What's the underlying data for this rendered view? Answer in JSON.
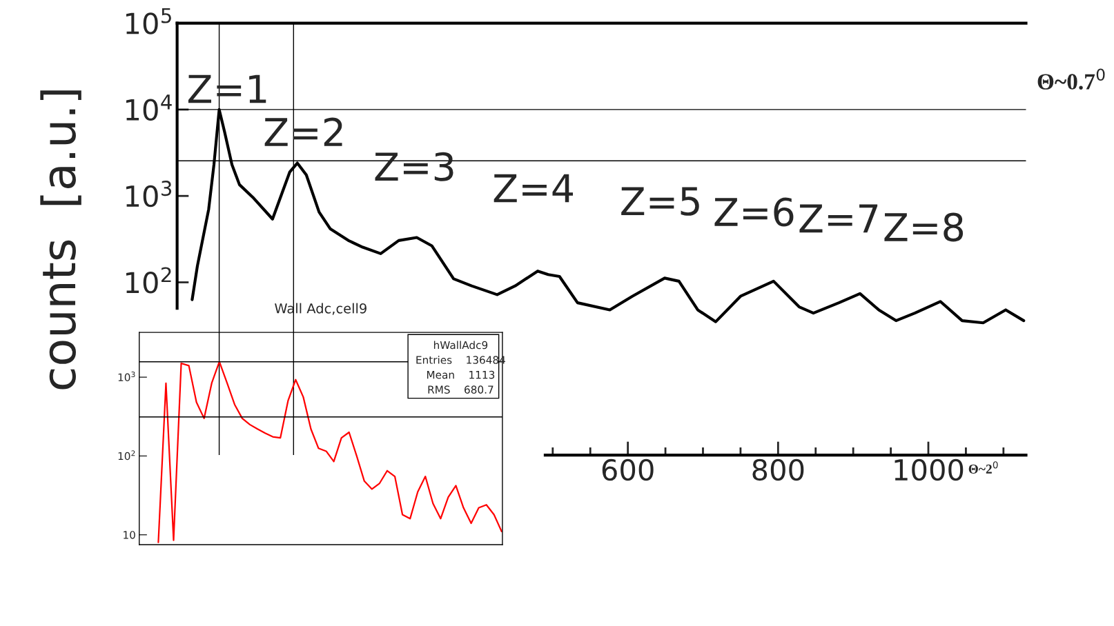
{
  "chart_data": [
    {
      "type": "line",
      "ylabel": "counts  [a.u.]",
      "log": "y",
      "xlim": [
        0,
        1130
      ],
      "ylim": [
        1,
        100000
      ],
      "xticks": [
        {
          "value": 500,
          "label": null
        },
        {
          "value": 550,
          "label": null
        },
        600,
        {
          "value": 650,
          "label": null
        },
        {
          "value": 700,
          "label": null
        },
        {
          "value": 750,
          "label": null
        },
        800,
        {
          "value": 850,
          "label": null
        },
        {
          "value": 900,
          "label": null
        },
        {
          "value": 950,
          "label": null
        },
        1000,
        {
          "value": 1050,
          "label": null
        },
        {
          "value": 1100,
          "label": null
        }
      ],
      "yticks": [
        {
          "value": 100,
          "label": "10$^{2}$"
        },
        {
          "value": 1000,
          "label": "10$^{3}$"
        },
        {
          "value": 10000,
          "label": "10$^{4}$"
        },
        {
          "value": 100000,
          "label": "10$^{5}$"
        }
      ],
      "series": [
        {
          "color": "#000000",
          "x": [
            20,
            27,
            42,
            49,
            56,
            63,
            73,
            83,
            102,
            127,
            140,
            150,
            160,
            172,
            189,
            204,
            228,
            247,
            271,
            295,
            319,
            339,
            368,
            392,
            426,
            450,
            480,
            494,
            509,
            533,
            576,
            606,
            649,
            668,
            693,
            717,
            750,
            794,
            828,
            847,
            881,
            909,
            934,
            957,
            982,
            1016,
            1045,
            1073,
            1103,
            1127
          ],
          "values": [
            63,
            155,
            700,
            2300,
            10000,
            5600,
            2300,
            1350,
            940,
            540,
            1100,
            1900,
            2400,
            1750,
            650,
            415,
            305,
            255,
            215,
            305,
            330,
            265,
            110,
            91,
            72,
            91,
            135,
            123,
            117,
            58,
            48,
            69,
            112,
            103,
            48,
            35,
            69,
            103,
            52,
            44,
            58,
            74,
            48,
            36,
            44,
            60,
            36,
            34,
            48,
            36
          ]
        }
      ],
      "ref_lines": [
        {
          "axis": "y",
          "value": 10000
        },
        {
          "axis": "y",
          "value": 2550
        },
        {
          "axis": "x",
          "value": 56
        },
        {
          "axis": "x",
          "value": 155
        }
      ],
      "annotations": [
        "Z=1",
        "Z=2",
        "Z=3",
        "Z=4",
        "Z=5",
        "Z=6",
        "Z=7",
        "Z=8",
        "Θ~0.7$^{0}$",
        "Θ~2$^{0}$"
      ]
    },
    {
      "type": "line",
      "title": "Wall Adc,cell9",
      "log": "y",
      "ylim": [
        7.5,
        3700
      ],
      "tick_labels": "y",
      "yticks": [
        {
          "value": 10,
          "label": "10"
        },
        {
          "value": 100,
          "label": "10$^{2}$"
        },
        {
          "value": 1000,
          "label": "10$^{3}$"
        }
      ],
      "categories": [
        null,
        null,
        null,
        null,
        null,
        null,
        null,
        null,
        null,
        null,
        null,
        null,
        null,
        null,
        null,
        null,
        null,
        null,
        null,
        null,
        null,
        null,
        null,
        null,
        null,
        null,
        null,
        null,
        null,
        null,
        null,
        null,
        null,
        null,
        null,
        null,
        null,
        null,
        null,
        null,
        null,
        null,
        null,
        null,
        null,
        null
      ],
      "series": [
        {
          "color": "#ff0000",
          "values": [
            8,
            840,
            8.5,
            1500,
            1400,
            480,
            300,
            840,
            1570,
            850,
            450,
            300,
            250,
            220,
            195,
            175,
            170,
            500,
            930,
            560,
            220,
            125,
            115,
            85,
            170,
            200,
            100,
            48,
            38,
            45,
            65,
            55,
            18,
            16,
            35,
            55,
            25,
            16,
            30,
            42,
            22,
            14,
            22,
            24,
            18,
            11
          ]
        }
      ],
      "ref_lines": [
        {
          "axis": "y",
          "value": 1570
        },
        {
          "axis": "y",
          "value": 313
        }
      ],
      "annotations": [
        "hWallAdc9",
        "Entries    136484",
        "Mean    1113",
        "RMS    680.7"
      ]
    }
  ]
}
